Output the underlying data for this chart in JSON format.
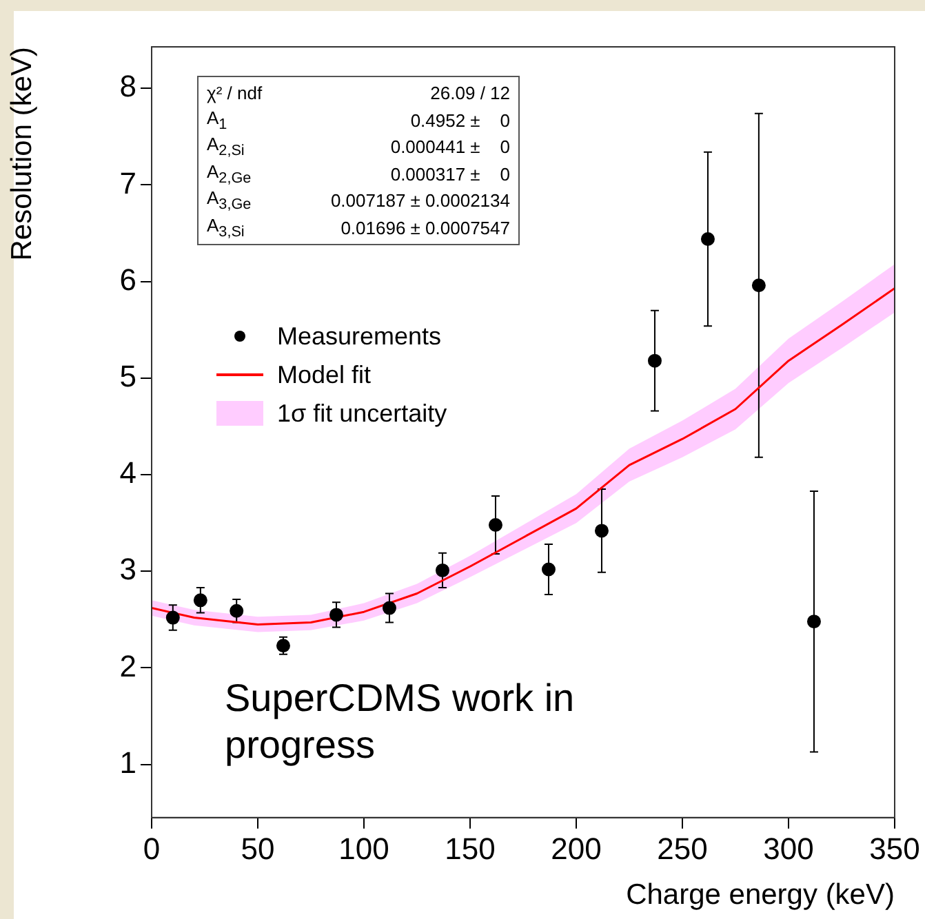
{
  "chart_data": {
    "type": "scatter",
    "xlabel": "Charge energy (keV)",
    "ylabel": "Resolution (keV)",
    "xlim": [
      0,
      350
    ],
    "xticks": [
      0,
      50,
      100,
      150,
      200,
      250,
      300,
      350
    ],
    "ylim": [
      0.45,
      8.43
    ],
    "yticks": [
      1,
      2,
      3,
      4,
      5,
      6,
      7,
      8
    ],
    "grid": false,
    "legend": "left",
    "series": [
      {
        "name": "Model fit",
        "type": "line",
        "color": "#ff0000",
        "marker": "none",
        "x": [
          0,
          20,
          50,
          75,
          100,
          125,
          150,
          175,
          200,
          225,
          250,
          275,
          300,
          325,
          350
        ],
        "values": [
          2.62,
          2.52,
          2.45,
          2.47,
          2.58,
          2.77,
          3.05,
          3.35,
          3.65,
          4.1,
          4.37,
          4.68,
          5.18,
          5.55,
          5.93
        ],
        "lower": [
          2.54,
          2.44,
          2.37,
          2.39,
          2.49,
          2.67,
          2.94,
          3.22,
          3.5,
          3.93,
          4.18,
          4.47,
          4.95,
          5.31,
          5.68
        ],
        "upper": [
          2.7,
          2.6,
          2.53,
          2.55,
          2.67,
          2.87,
          3.16,
          3.48,
          3.8,
          4.27,
          4.56,
          4.89,
          5.41,
          5.79,
          6.18
        ]
      },
      {
        "name": "Measurements",
        "marker": "circle",
        "color": "#000000",
        "x": [
          10,
          23,
          40,
          62,
          87,
          112,
          137,
          162,
          187,
          212,
          237,
          262,
          286,
          312
        ],
        "values": [
          2.52,
          2.7,
          2.59,
          2.23,
          2.55,
          2.62,
          3.01,
          3.48,
          3.02,
          3.42,
          5.18,
          6.44,
          5.96,
          2.48
        ],
        "errors": [
          0.13,
          0.13,
          0.12,
          0.09,
          0.13,
          0.15,
          0.18,
          0.3,
          0.26,
          0.43,
          0.52,
          0.9,
          1.78,
          1.35
        ]
      }
    ],
    "annotations": [
      "χ² / ndf\t26.09 / 12",
      "A$_{1}$\t0.4952 ±    0",
      "A$_{2,Si}$\t0.000441 ±    0",
      "A$_{2,Ge}$\t0.000317 ±    0",
      "A$_{3,Ge}$\t0.007187 ± 0.0002134",
      "A$_{3,Si}$\t0.01696 ± 0.0007547",
      "1σ fit uncertaity",
      "SuperCDMS work in progress"
    ]
  }
}
